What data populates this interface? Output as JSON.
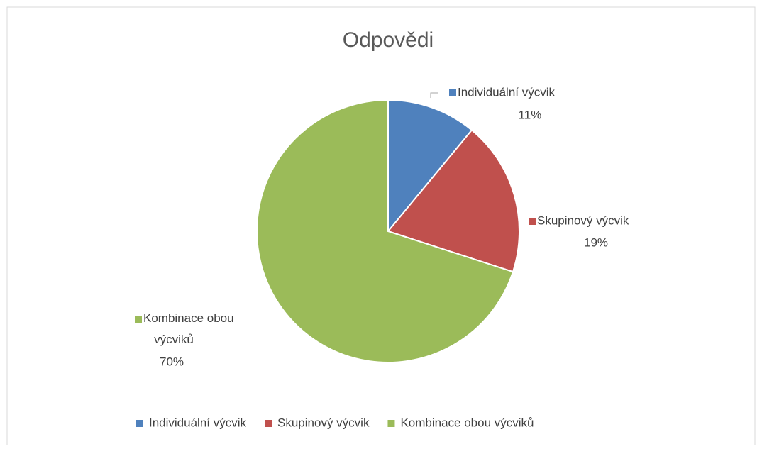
{
  "chart_data": {
    "type": "pie",
    "title": "Odpovědi",
    "categories": [
      "Individuální výcvik",
      "Skupinový výcvik",
      "Kombinace obou výcviků"
    ],
    "values": [
      11,
      19,
      70
    ],
    "value_labels": [
      "11%",
      "19%",
      "70%"
    ],
    "colors": [
      "#4f81bd",
      "#c0504d",
      "#9bbb59"
    ],
    "legend": "bottom"
  }
}
